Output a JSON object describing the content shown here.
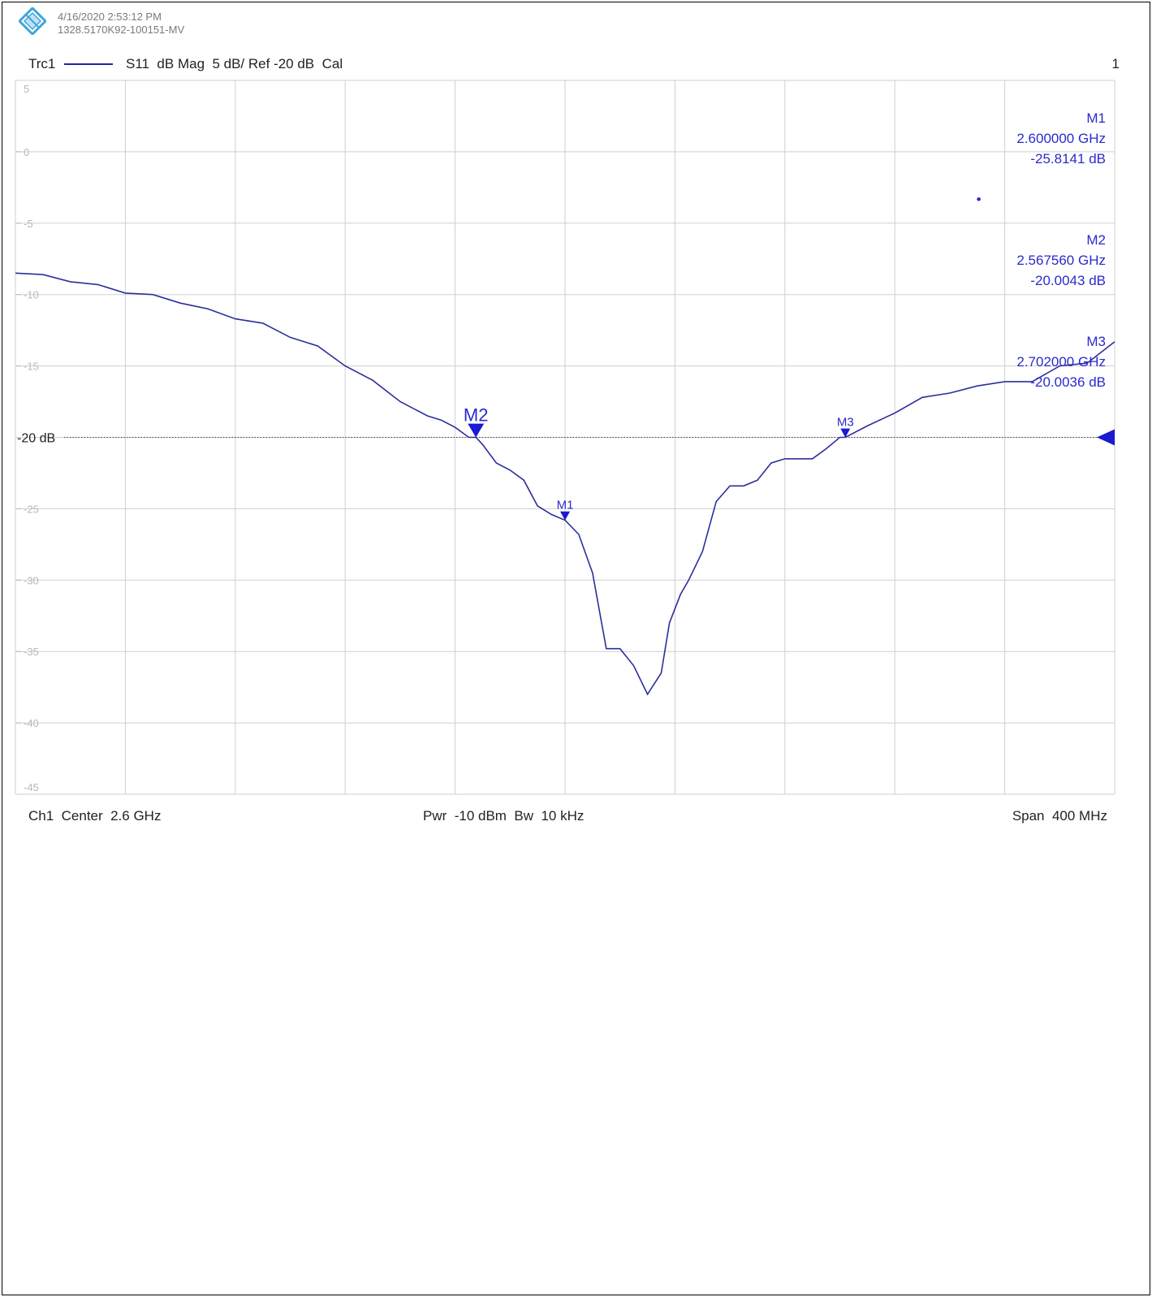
{
  "header": {
    "timestamp": "4/16/2020 2:53:12 PM",
    "instrument_id": "1328.5170K92-100151-MV"
  },
  "trace_bar": {
    "trace_name": "Trc1",
    "measurement": "S11  dB Mag  5 dB/ Ref -20 dB  Cal",
    "channel_number": "1"
  },
  "footer": {
    "center": "Ch1  Center  2.6 GHz",
    "power_bw": "Pwr  -10 dBm  Bw  10 kHz",
    "span": "Span  400 MHz"
  },
  "markers": [
    {
      "label": "M1",
      "freq": "2.600000 GHz",
      "value": "-25.8141 dB",
      "active": false
    },
    {
      "label": "M2",
      "freq": "2.567560 GHz",
      "value": "-20.0043 dB",
      "active": true
    },
    {
      "label": "M3",
      "freq": "2.702000 GHz",
      "value": "-20.0036 dB",
      "active": false
    }
  ],
  "colors": {
    "trace": "#2b2f9a",
    "marker": "#1a1ad0",
    "marker_text": "#2a2acc",
    "grid": "#cfcfcf"
  },
  "chart_data": {
    "type": "line",
    "title": "",
    "xlabel": "",
    "ylabel": "",
    "xlim": [
      2.4,
      2.8
    ],
    "ylim": [
      -45,
      5
    ],
    "y_ticks": [
      5,
      0,
      -5,
      -10,
      -15,
      -20,
      -25,
      -30,
      -35,
      -40,
      -45
    ],
    "reference_level": -20,
    "reference_label": "-20 dB",
    "grid": true,
    "series": [
      {
        "x": [
          2.4,
          2.41,
          2.42,
          2.43,
          2.44,
          2.45,
          2.46,
          2.47,
          2.48,
          2.49,
          2.5,
          2.51,
          2.52,
          2.53,
          2.54,
          2.55,
          2.555,
          2.56,
          2.565,
          2.5676,
          2.57,
          2.575,
          2.58,
          2.585,
          2.59,
          2.595,
          2.6,
          2.605,
          2.61,
          2.615,
          2.62,
          2.625,
          2.63,
          2.635,
          2.638,
          2.642,
          2.645,
          2.65,
          2.655,
          2.66,
          2.665,
          2.67,
          2.675,
          2.68,
          2.685,
          2.69,
          2.695,
          2.7,
          2.702,
          2.71,
          2.72,
          2.73,
          2.74,
          2.75,
          2.76,
          2.77,
          2.78,
          2.79,
          2.8
        ],
        "y": [
          -8.5,
          -8.6,
          -9.1,
          -9.3,
          -9.9,
          -10.0,
          -10.6,
          -11.0,
          -11.7,
          -12.0,
          -13.0,
          -13.6,
          -15.0,
          -16.0,
          -17.5,
          -18.5,
          -18.8,
          -19.3,
          -20.0,
          -20.0,
          -20.5,
          -21.8,
          -22.3,
          -23.0,
          -24.8,
          -25.4,
          -25.8,
          -26.8,
          -29.5,
          -34.8,
          -34.8,
          -36.0,
          -38.0,
          -36.5,
          -33.0,
          -31.0,
          -30.0,
          -28.0,
          -24.5,
          -23.4,
          -23.4,
          -23.0,
          -21.8,
          -21.5,
          -21.5,
          -21.5,
          -20.8,
          -20.0,
          -20.0,
          -19.2,
          -18.3,
          -17.2,
          -16.9,
          -16.4,
          -16.1,
          -16.1,
          -15.0,
          -14.8,
          -13.3
        ]
      }
    ]
  }
}
